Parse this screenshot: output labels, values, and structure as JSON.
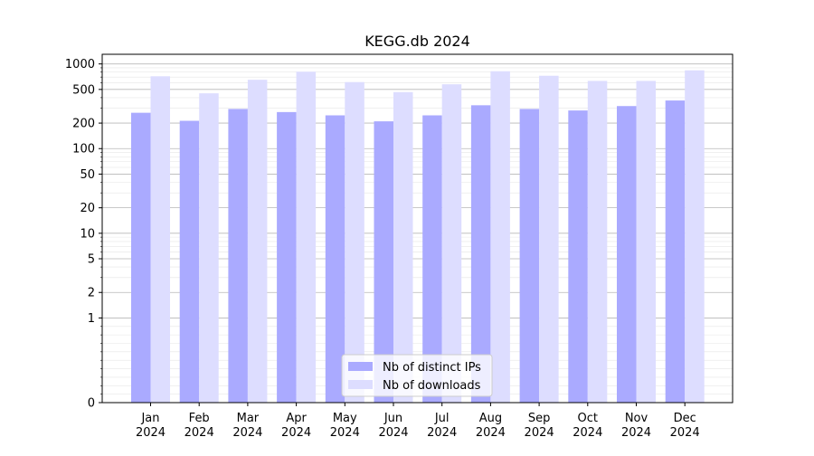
{
  "chart_data": {
    "type": "bar",
    "title": "KEGG.db 2024",
    "xlabel": "",
    "ylabel": "",
    "scale": "symlog",
    "ylim": [
      0,
      1300
    ],
    "grid": "horizontal (major and minor)",
    "legend_position": "bottom-center",
    "categories": [
      "Jan\n2024",
      "Feb\n2024",
      "Mar\n2024",
      "Apr\n2024",
      "May\n2024",
      "Jun\n2024",
      "Jul\n2024",
      "Aug\n2024",
      "Sep\n2024",
      "Oct\n2024",
      "Nov\n2024",
      "Dec\n2024"
    ],
    "category_lines": [
      [
        "Jan",
        "2024"
      ],
      [
        "Feb",
        "2024"
      ],
      [
        "Mar",
        "2024"
      ],
      [
        "Apr",
        "2024"
      ],
      [
        "May",
        "2024"
      ],
      [
        "Jun",
        "2024"
      ],
      [
        "Jul",
        "2024"
      ],
      [
        "Aug",
        "2024"
      ],
      [
        "Sep",
        "2024"
      ],
      [
        "Oct",
        "2024"
      ],
      [
        "Nov",
        "2024"
      ],
      [
        "Dec",
        "2024"
      ]
    ],
    "y_ticks": [
      0,
      1,
      2,
      5,
      10,
      20,
      50,
      100,
      200,
      500,
      1000
    ],
    "series": [
      {
        "name": "Nb of distinct IPs",
        "color": "#aaaaff",
        "values": [
          265,
          213,
          294,
          270,
          247,
          210,
          247,
          325,
          294,
          282,
          318,
          370
        ]
      },
      {
        "name": "Nb of downloads",
        "color": "#ddddff",
        "values": [
          715,
          450,
          650,
          810,
          610,
          465,
          575,
          820,
          725,
          630,
          630,
          840
        ]
      }
    ]
  }
}
